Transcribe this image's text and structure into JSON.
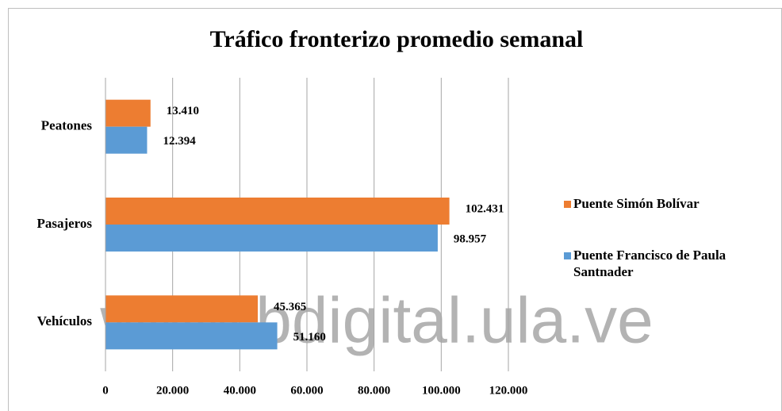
{
  "chart_data": {
    "type": "bar",
    "orientation": "horizontal",
    "title": "Tráfico fronterizo promedio semanal",
    "categories": [
      "Vehículos",
      "Pasajeros",
      "Peatones"
    ],
    "series": [
      {
        "name": "Puente Simón Bolívar",
        "color": "#ed7d31",
        "values": [
          45365,
          102431,
          13410
        ],
        "value_labels": [
          "45.365",
          "102.431",
          "13.410"
        ]
      },
      {
        "name": "Puente Francisco de Paula Santnader",
        "color": "#5b9bd5",
        "values": [
          51160,
          98957,
          12394
        ],
        "value_labels": [
          "51.160",
          "98.957",
          "12.394"
        ]
      }
    ],
    "xlim": [
      0,
      120000
    ],
    "xticks": [
      0,
      {
        "value": 20000,
        "label": "20.000"
      },
      {
        "value": 40000,
        "label": "40.000"
      },
      {
        "value": 60000,
        "label": "60.000"
      },
      {
        "value": 80000,
        "label": "80.000"
      },
      {
        "value": 100000,
        "label": "100.000"
      },
      {
        "value": 120000,
        "label": "120.000"
      }
    ],
    "grid": true,
    "legend": "right",
    "watermark": "www.bdigital.ula.ve"
  }
}
